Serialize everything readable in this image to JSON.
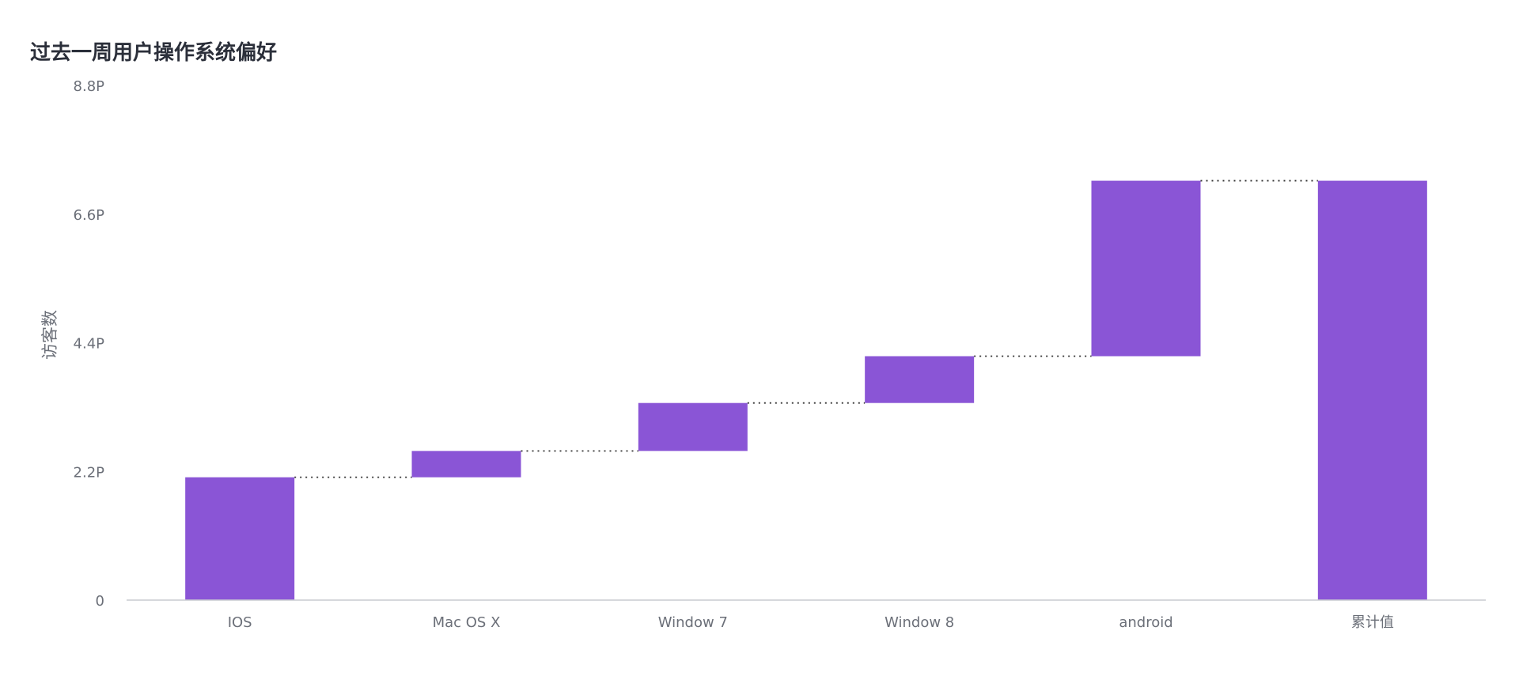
{
  "chart_data": {
    "type": "bar",
    "subtype": "waterfall",
    "title": "过去一周用户操作系统偏好",
    "xlabel": "",
    "ylabel": "访客数",
    "y_ticks": [
      "0",
      "2.2P",
      "4.4P",
      "6.6P",
      "8.8P"
    ],
    "ylim": [
      0,
      8.8
    ],
    "y_unit": "P",
    "categories": [
      "IOS",
      "Mac OS X",
      "Window 7",
      "Window 8",
      "android",
      "累计值"
    ],
    "series": [
      {
        "values": [
          2.1,
          0.45,
          0.82,
          0.8,
          3.0,
          7.17
        ],
        "bar_type": [
          "increase",
          "increase",
          "increase",
          "increase",
          "increase",
          "total"
        ]
      }
    ],
    "color": "#8a55d6",
    "connector_color": "#333333",
    "grid": false,
    "legend": "none"
  }
}
